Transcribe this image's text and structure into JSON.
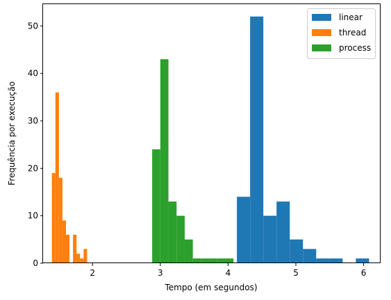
{
  "chart_data": {
    "type": "bar",
    "subtype": "histogram",
    "xlabel": "Tempo (em segundos)",
    "ylabel": "Frequência por execução",
    "xlim": [
      1.27,
      6.25
    ],
    "ylim": [
      0,
      54.6
    ],
    "xticks": [
      2,
      3,
      4,
      5,
      6
    ],
    "yticks": [
      0,
      10,
      20,
      30,
      40,
      50
    ],
    "grid": false,
    "legend_position": "top-right",
    "series": [
      {
        "name": "linear",
        "color": "#1f77b4",
        "bin_edges": [
          4.13,
          4.325,
          4.52,
          4.715,
          4.91,
          5.105,
          5.3,
          5.495,
          5.69,
          5.885,
          6.08
        ],
        "values": [
          14,
          52,
          10,
          13,
          5,
          3,
          1,
          1,
          0,
          1
        ]
      },
      {
        "name": "thread",
        "color": "#ff7f0e",
        "bin_edges": [
          1.4,
          1.452,
          1.504,
          1.556,
          1.608,
          1.66,
          1.712,
          1.764,
          1.816,
          1.868,
          1.92
        ],
        "values": [
          19,
          36,
          18,
          9,
          6,
          0,
          6,
          2,
          1,
          3
        ]
      },
      {
        "name": "process",
        "color": "#2ca02c",
        "bin_edges": [
          2.88,
          3.0,
          3.12,
          3.24,
          3.36,
          3.48,
          3.6,
          3.72,
          3.84,
          3.96,
          4.08
        ],
        "values": [
          24,
          43,
          13,
          10,
          5,
          1,
          1,
          1,
          1,
          1
        ]
      }
    ]
  }
}
